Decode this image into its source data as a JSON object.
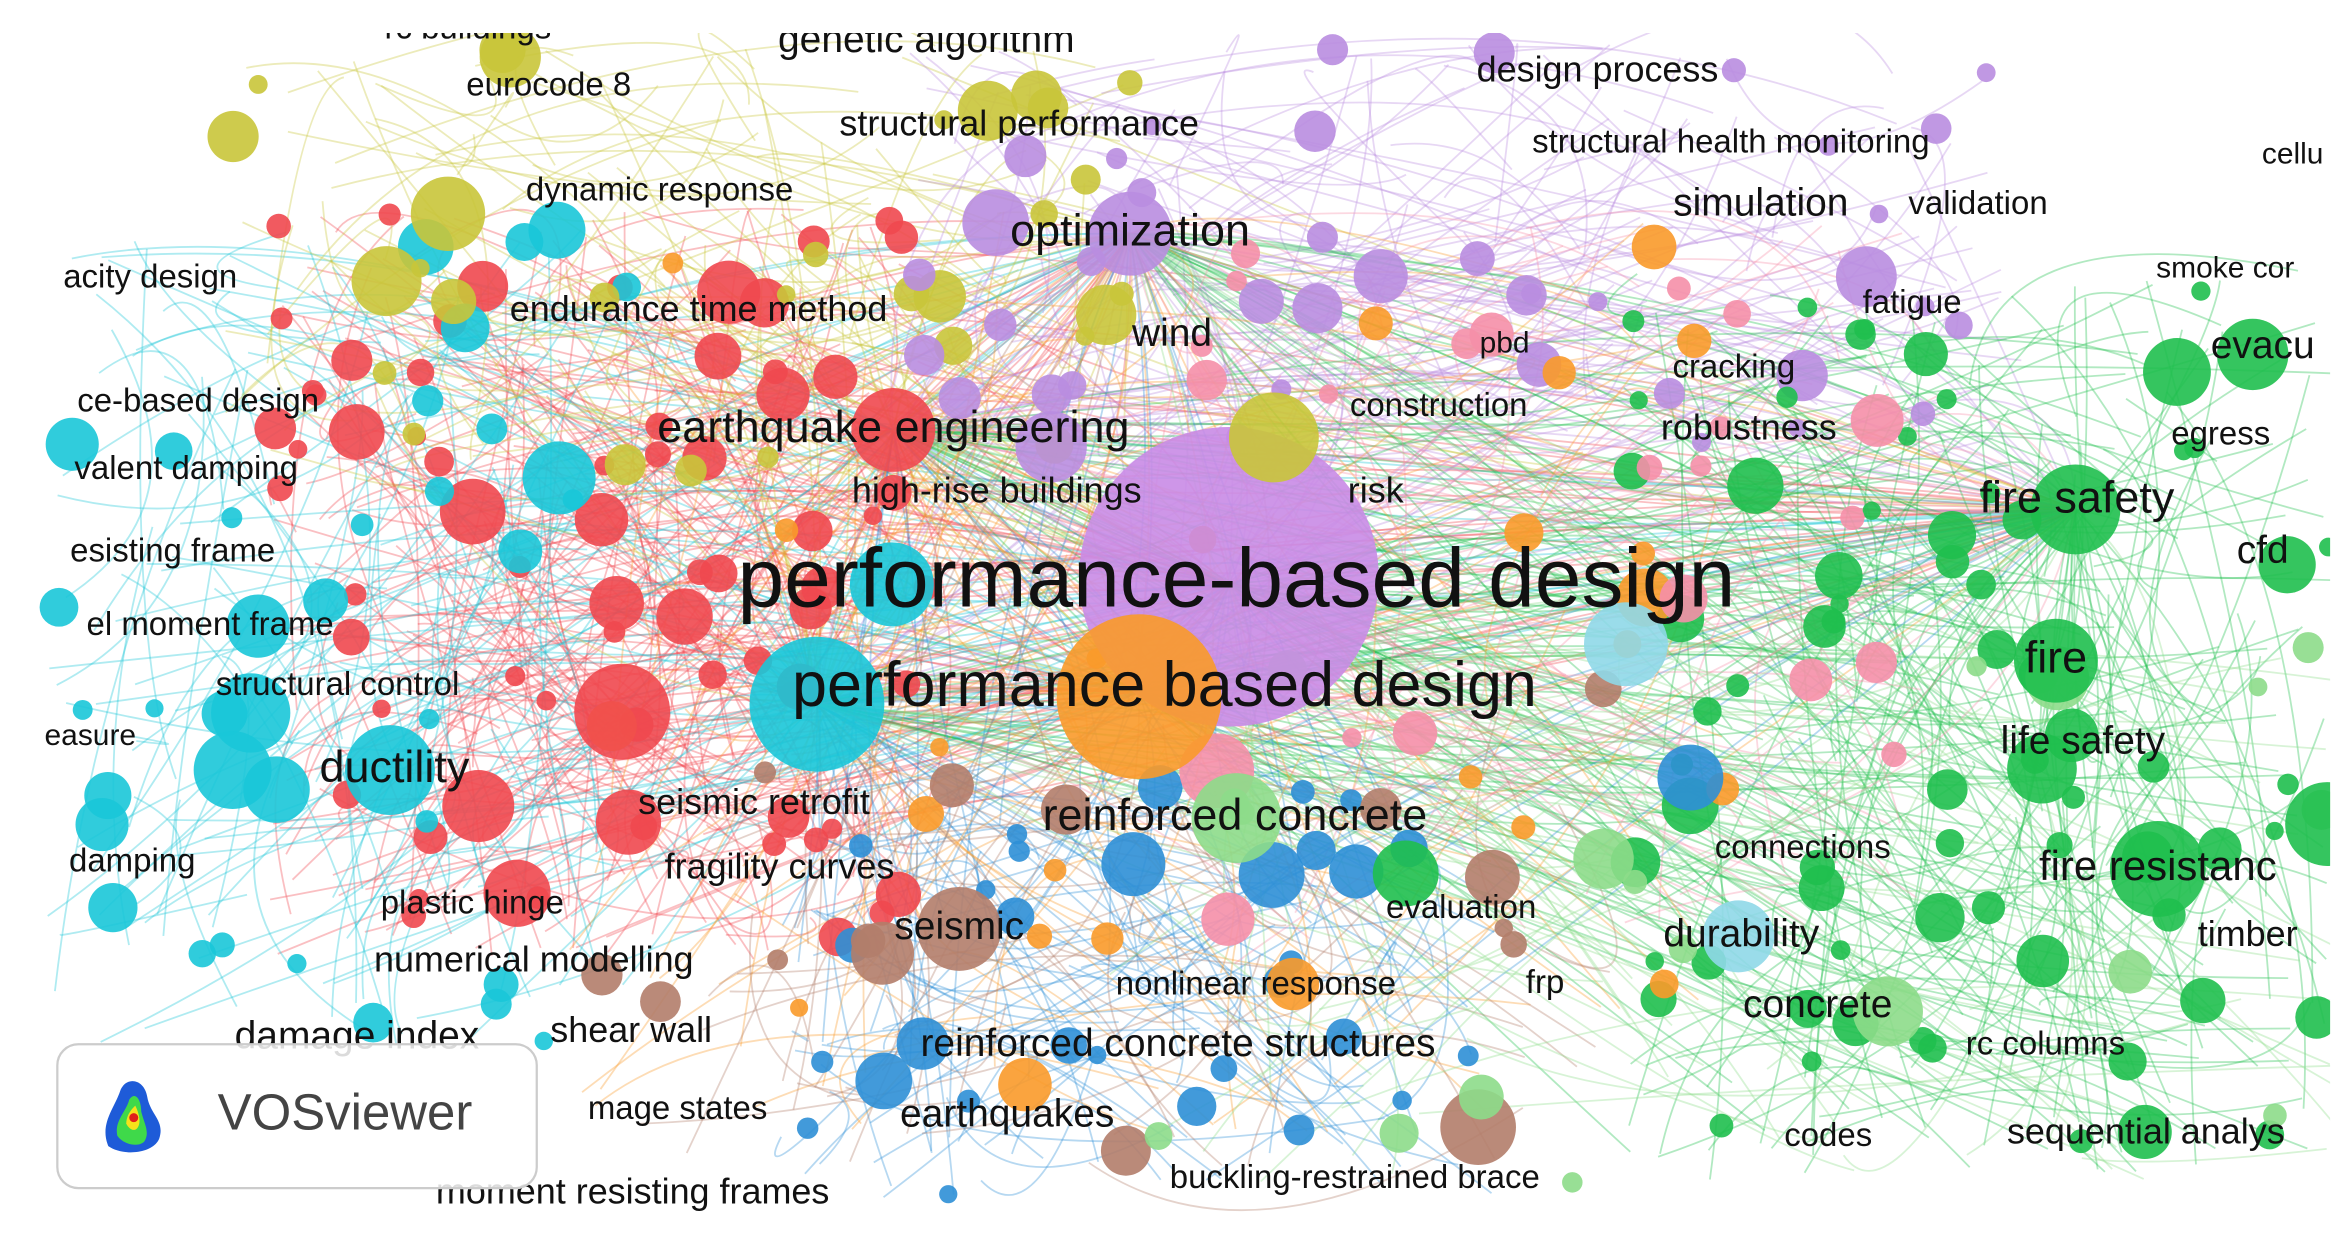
{
  "labels": [
    "rc buildings",
    "genetic algorithm",
    "eurocode 8",
    "design process",
    "structural performance",
    "structural health monitoring",
    "cellu",
    "dynamic response",
    "optimization",
    "simulation",
    "validation",
    "acity design",
    "smoke cor",
    "endurance time method",
    "fatigue",
    "wind",
    "pbd",
    "evacu",
    "cracking",
    "ce-based design",
    "construction",
    "earthquake engineering",
    "robustness",
    "egress",
    "valent damping",
    "high-rise buildings",
    "risk",
    "fire safety",
    "esisting frame",
    "performance-based design",
    "cfd",
    "el moment frame",
    "structural control",
    "performance based design",
    "fire",
    "easure",
    "ductility",
    "life safety",
    "seismic retrofit",
    "reinforced concrete",
    "connections",
    "damping",
    "fragility curves",
    "fire resistanc",
    "plastic hinge",
    "evaluation",
    "seismic",
    "durability",
    "timber",
    "numerical modelling",
    "nonlinear response",
    "frp",
    "concrete",
    "damage index",
    "shear wall",
    "reinforced concrete structures",
    "rc columns",
    "earthquakes",
    "mage states",
    "codes",
    "sequential analys",
    "buckling-restrained brace",
    "moment resisting frames"
  ],
  "logo": "VOSviewer"
}
